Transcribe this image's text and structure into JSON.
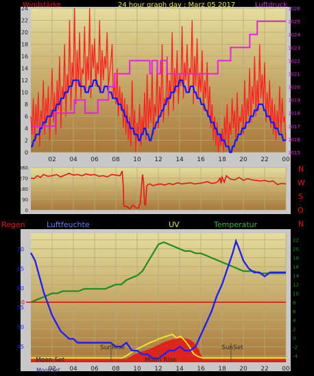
{
  "colors": {
    "frame": "#c8c8c8",
    "plot_top": "#e4dd9c",
    "plot_bottom": "#a8783a",
    "grid": "#b4aa78",
    "axis_text": "#1e1e1e",
    "wind": "#ff1e1e",
    "wind_avg": "#1414ff",
    "pressure": "#e61ee6",
    "direction": "#e61414",
    "humidity": "#1e1eff",
    "temperature": "#1e8c1e",
    "uv": "#f0e628",
    "rain": "#e61414",
    "zero_line": "#c80000",
    "title_color": "#e6e632",
    "label_red": "#e61414",
    "label_magenta": "#d21ed2",
    "label_blue": "#5a82ff",
    "label_yellow": "#e6e632",
    "label_green": "#32b432"
  },
  "header": {
    "windstaerke": "Windstärke",
    "title": "24 hour graph day : Marz 05 2017",
    "luftdruck": "Luftdruck"
  },
  "compass": [
    "N",
    "W",
    "S",
    "O",
    "N"
  ],
  "bottom_labels": {
    "regen": "Regen",
    "luftfeuchte": "Luftfeuchte",
    "uv": "UV",
    "temperatur": "Temperatur"
  },
  "events": {
    "moon_set": "Moon Set",
    "sun_rise": "SunRise",
    "moon_rise": "Moon Rise",
    "sun_set": "SunSet",
    "moon_set_bottom": "MoonSet"
  },
  "chart_data": [
    {
      "type": "line",
      "id": "wind_pressure",
      "x_ticks": [
        "02",
        "04",
        "06",
        "08",
        "10",
        "12",
        "14",
        "16",
        "18",
        "20",
        "22",
        "00"
      ],
      "y_left_ticks": [
        "0",
        "2",
        "4",
        "6",
        "8",
        "10",
        "12",
        "14",
        "16",
        "18",
        "20",
        "22",
        "24"
      ],
      "y_right_ticks": [
        "1015",
        "1016",
        "1017",
        "1018",
        "1019",
        "1020",
        "1021",
        "1022",
        "1023",
        "1024",
        "1025",
        "1026"
      ],
      "ylim_left": [
        0,
        24
      ],
      "ylim_right": [
        1015,
        1026
      ],
      "series": [
        {
          "name": "Windstärke",
          "values": [
            6,
            3,
            9,
            2,
            8,
            4,
            10,
            1,
            7,
            5,
            12,
            3,
            9,
            6,
            11,
            2,
            8,
            14,
            5,
            10,
            3,
            12,
            7,
            16,
            4,
            11,
            9,
            18,
            6,
            13,
            10,
            22,
            7,
            15,
            12,
            24,
            8,
            17,
            11,
            20,
            9,
            14,
            13,
            21,
            10,
            16,
            12,
            24,
            9,
            18,
            14,
            19,
            11,
            15,
            13,
            22,
            10,
            17,
            12,
            16,
            14,
            20,
            11,
            13,
            15,
            18,
            9,
            12,
            8,
            14,
            6,
            11,
            7,
            10,
            4,
            9,
            3,
            8,
            2,
            6,
            1,
            12,
            3,
            7,
            0,
            5,
            2,
            8,
            1,
            6,
            3,
            10,
            2,
            13,
            4,
            9,
            5,
            14,
            3,
            8,
            6,
            15,
            4,
            11,
            7,
            18,
            5,
            9,
            8,
            16,
            6,
            12,
            9,
            20,
            7,
            14,
            10,
            17,
            8,
            13,
            11,
            21,
            9,
            15,
            12,
            18,
            10,
            14,
            13,
            22,
            8,
            16,
            11,
            19,
            9,
            13,
            10,
            17,
            7,
            12,
            9,
            15,
            6,
            11,
            4,
            8,
            2,
            6,
            1,
            5,
            0,
            3,
            1,
            4,
            0,
            6,
            2,
            8,
            1,
            5,
            3,
            9,
            4,
            7,
            2,
            10,
            3,
            6,
            5,
            8,
            3,
            12,
            4,
            9,
            6,
            14,
            5,
            11,
            8,
            16,
            6,
            12,
            7,
            18,
            9,
            13,
            8,
            15,
            5,
            10,
            6,
            12,
            4,
            9,
            3,
            8,
            2,
            7,
            4,
            11,
            3,
            9,
            5,
            6,
            2
          ]
        },
        {
          "name": "Windstärke avg",
          "values": [
            1,
            1,
            2,
            2,
            3,
            3,
            3,
            4,
            4,
            5,
            5,
            5,
            6,
            6,
            6,
            6,
            7,
            7,
            7,
            8,
            8,
            8,
            9,
            9,
            9,
            10,
            10,
            10,
            11,
            11,
            11,
            12,
            12,
            12,
            12,
            12,
            11,
            11,
            11,
            11,
            10,
            10,
            10,
            11,
            11,
            11,
            12,
            12,
            12,
            11,
            11,
            10,
            10,
            10,
            11,
            11,
            11,
            10,
            10,
            10,
            9,
            9,
            9,
            9,
            8,
            8,
            8,
            7,
            7,
            6,
            6,
            5,
            5,
            4,
            4,
            4,
            3,
            3,
            3,
            2,
            2,
            3,
            3,
            4,
            4,
            3,
            3,
            2,
            2,
            3,
            4,
            4,
            5,
            5,
            6,
            6,
            7,
            7,
            8,
            8,
            9,
            9,
            9,
            10,
            10,
            10,
            11,
            11,
            11,
            12,
            12,
            12,
            11,
            11,
            10,
            10,
            10,
            11,
            11,
            11,
            10,
            10,
            9,
            9,
            9,
            8,
            8,
            8,
            7,
            7,
            6,
            6,
            5,
            5,
            5,
            4,
            4,
            3,
            3,
            3,
            2,
            2,
            2,
            1,
            1,
            1,
            0,
            0,
            1,
            1,
            2,
            2,
            3,
            3,
            3,
            4,
            4,
            4,
            5,
            5,
            5,
            6,
            6,
            6,
            7,
            7,
            7,
            8,
            8,
            8,
            8,
            7,
            7,
            6,
            6,
            6,
            5,
            5,
            5,
            4,
            4,
            4,
            3,
            3,
            3,
            2,
            2,
            2
          ]
        },
        {
          "name": "Luftdruck",
          "x_hours": [
            0,
            2.3,
            2.3,
            4.1,
            4.1,
            5.1,
            5.1,
            6.3,
            6.3,
            7.3,
            7.3,
            7.9,
            7.9,
            8.4,
            8.4,
            9.3,
            9.3,
            11.2,
            11.2,
            11.4,
            11.4,
            11.9,
            11.9,
            12.2,
            12.2,
            12.8,
            12.8,
            17.6,
            17.6,
            18.8,
            18.8,
            20.6,
            20.6,
            21.3,
            21.3,
            22.0,
            22.0,
            22.3,
            22.3,
            24.0
          ],
          "values": [
            1017,
            1017,
            1018,
            1018,
            1019,
            1019,
            1018,
            1018,
            1019,
            1019,
            1020,
            1020,
            1021,
            1021,
            1021,
            1021,
            1022,
            1022,
            1021,
            1021,
            1022,
            1022,
            1021,
            1021,
            1022,
            1022,
            1021,
            1021,
            1022,
            1022,
            1023,
            1023,
            1024,
            1024,
            1025,
            1025,
            1025,
            1025,
            1025,
            1025
          ]
        }
      ]
    },
    {
      "type": "line",
      "id": "direction",
      "y_ticks": [
        "0",
        "90",
        "180",
        "270",
        "360"
      ],
      "ylim": [
        0,
        360
      ],
      "series": [
        {
          "name": "Windrichtung",
          "x_hours": [
            0,
            0.3,
            0.6,
            0.9,
            1.2,
            1.6,
            2.0,
            2.4,
            2.8,
            3.2,
            3.6,
            4.0,
            4.4,
            4.8,
            5.2,
            5.6,
            6.0,
            6.4,
            6.8,
            7.2,
            7.6,
            8.0,
            8.4,
            8.6,
            8.7,
            8.75,
            8.8,
            9.0,
            9.3,
            9.6,
            9.9,
            10.1,
            10.3,
            10.5,
            10.6,
            10.7,
            10.8,
            10.9,
            11.0,
            11.2,
            11.5,
            11.8,
            12.2,
            12.6,
            13.0,
            13.4,
            13.8,
            14.2,
            14.6,
            15.0,
            15.4,
            15.8,
            16.2,
            16.6,
            17.0,
            17.4,
            17.6,
            17.8,
            17.9,
            18.0,
            18.2,
            18.4,
            18.8,
            19.2,
            19.6,
            20.0,
            20.4,
            20.8,
            21.2,
            21.6,
            22.0,
            22.4,
            22.8,
            23.2,
            23.6,
            24.0
          ],
          "values": [
            270,
            265,
            290,
            275,
            300,
            285,
            290,
            300,
            280,
            295,
            310,
            295,
            300,
            290,
            305,
            295,
            300,
            285,
            290,
            280,
            300,
            295,
            290,
            330,
            200,
            40,
            30,
            30,
            10,
            40,
            20,
            15,
            60,
            300,
            250,
            50,
            40,
            200,
            215,
            220,
            205,
            215,
            220,
            210,
            225,
            215,
            230,
            220,
            225,
            230,
            220,
            225,
            230,
            240,
            225,
            230,
            240,
            270,
            225,
            280,
            235,
            290,
            260,
            255,
            275,
            250,
            265,
            255,
            250,
            245,
            250,
            240,
            245,
            215,
            225,
            220
          ]
        }
      ]
    },
    {
      "type": "line",
      "id": "climate",
      "y_left_ticks": [
        "45",
        "50",
        "55",
        "60",
        "65",
        "70"
      ],
      "y_right_ticks": [
        "-4",
        "-2",
        "0",
        "2",
        "4",
        "6",
        "8",
        "10",
        "12",
        "14",
        "16",
        "18",
        "20",
        "22"
      ],
      "ylim_left": [
        41,
        74
      ],
      "ylim_right": [
        -5.5,
        23.5
      ],
      "x_ticks": [
        "02",
        "04",
        "06",
        "08",
        "10",
        "12",
        "14",
        "16",
        "18",
        "20",
        "22",
        "00"
      ],
      "series": [
        {
          "name": "Luftfeuchte",
          "x_hours": [
            0,
            0.4,
            0.8,
            1.2,
            1.6,
            2.0,
            2.4,
            2.8,
            3.2,
            3.6,
            4.0,
            4.4,
            4.8,
            5.2,
            5.6,
            6.0,
            6.5,
            7.0,
            7.5,
            8.0,
            8.5,
            9.0,
            9.5,
            10.0,
            10.5,
            11.0,
            11.5,
            12.0,
            12.5,
            13.0,
            13.5,
            14.0,
            14.5,
            15.0,
            15.5,
            16.0,
            16.5,
            17.0,
            17.5,
            18.0,
            18.5,
            19.0,
            19.3,
            19.6,
            20.0,
            20.5,
            21.0,
            21.5,
            22.0,
            22.5,
            23.0,
            23.5,
            24.0
          ],
          "values": [
            69,
            67,
            63,
            59,
            56,
            53,
            51,
            49,
            48,
            47,
            47,
            46,
            46,
            46,
            46,
            46,
            46,
            46,
            46,
            45,
            45,
            46,
            44,
            44,
            43,
            43,
            42,
            42,
            43,
            44,
            44,
            45,
            44,
            44,
            45,
            48,
            51,
            54,
            58,
            61,
            65,
            69,
            72,
            70,
            67,
            65,
            64,
            64,
            63,
            64,
            64,
            64,
            64
          ]
        },
        {
          "name": "Temperatur",
          "x_hours": [
            0,
            0.5,
            1.0,
            1.5,
            2.0,
            2.5,
            3.0,
            3.5,
            4.0,
            4.5,
            5.0,
            5.5,
            6.0,
            6.5,
            7.0,
            7.5,
            8.0,
            8.5,
            9.0,
            9.5,
            10.0,
            10.5,
            11.0,
            11.5,
            12.0,
            12.5,
            13.0,
            13.5,
            14.0,
            14.5,
            15.0,
            15.5,
            16.0,
            16.5,
            17.0,
            17.5,
            18.0,
            18.5,
            19.0,
            19.5,
            20.0,
            20.5,
            21.0,
            21.5,
            22.0,
            22.5,
            23.0,
            23.5,
            24.0
          ],
          "values": [
            8,
            8.5,
            9,
            9.5,
            10,
            10,
            10.5,
            10.5,
            10.5,
            10.5,
            11,
            11,
            11,
            11,
            11,
            11.5,
            12,
            12,
            13,
            13.5,
            14,
            15,
            17,
            19,
            21,
            21.5,
            21,
            20.5,
            20,
            19.5,
            19.5,
            19,
            19,
            18.5,
            18,
            17.5,
            17,
            16.5,
            16,
            15.5,
            15,
            15,
            15,
            14.5,
            14.5,
            14.5,
            14.5,
            14.5,
            14.5
          ]
        },
        {
          "name": "UV",
          "x_hours": [
            0,
            8.6,
            8.9,
            9.3,
            9.7,
            10.1,
            10.5,
            10.9,
            11.3,
            11.7,
            12.1,
            12.5,
            12.9,
            13.3,
            13.7,
            14.1,
            14.5,
            14.9,
            15.3,
            15.7,
            16.1,
            24.0
          ],
          "values": [
            0,
            0,
            0.2,
            0.6,
            1.0,
            1.3,
            1.6,
            1.9,
            2.2,
            2.4,
            2.7,
            2.9,
            3.1,
            3.3,
            2.8,
            3.0,
            2.4,
            1.6,
            0.6,
            0.2,
            0,
            0
          ]
        },
        {
          "name": "Regen",
          "x_hours": [
            0,
            9.0,
            9.6,
            10.2,
            10.6,
            11.0,
            11.4,
            11.8,
            12.2,
            12.6,
            13.0,
            13.4,
            13.8,
            14.2,
            14.6,
            15.0,
            15.4,
            15.8,
            16.2,
            24.0
          ],
          "values": [
            0,
            0,
            0.6,
            1.0,
            1.2,
            1.4,
            1.7,
            2.0,
            2.3,
            2.6,
            2.8,
            3.0,
            3.1,
            3.2,
            3.1,
            2.9,
            2.4,
            1.4,
            0,
            0
          ]
        }
      ]
    }
  ]
}
